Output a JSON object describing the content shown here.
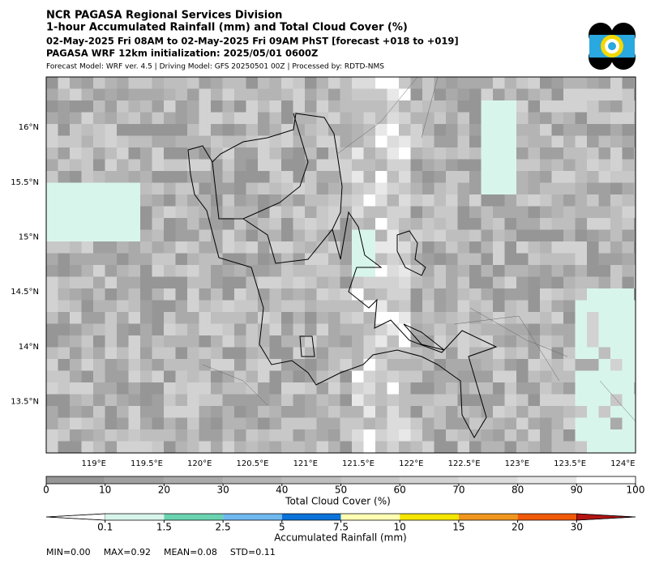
{
  "header": {
    "title": "NCR PAGASA Regional Services Division",
    "subtitle": "1-hour Accumulated Rainfall (mm) and Total Cloud Cover (%)",
    "period": "02-May-2025 Fri 08AM to 02-May-2025 Fri 09AM PhST [forecast +018 to +019]",
    "init": "PAGASA WRF 12km initialization: 2025/05/01 0600Z",
    "model": "Forecast Model: WRF ver. 4.5 | Driving Model: GFS 20250501 00Z | Processed by: RDTD-NMS"
  },
  "map": {
    "lon_range": [
      118.55,
      124.12
    ],
    "lat_range": [
      13.03,
      16.46
    ],
    "lon_ticks": [
      {
        "value": 119,
        "label": "119°E"
      },
      {
        "value": 119.5,
        "label": "119.5°E"
      },
      {
        "value": 120,
        "label": "120°E"
      },
      {
        "value": 120.5,
        "label": "120.5°E"
      },
      {
        "value": 121,
        "label": "121°E"
      },
      {
        "value": 121.5,
        "label": "121.5°E"
      },
      {
        "value": 122,
        "label": "122°E"
      },
      {
        "value": 122.5,
        "label": "122.5°E"
      },
      {
        "value": 123,
        "label": "123°E"
      },
      {
        "value": 123.5,
        "label": "123.5°E"
      },
      {
        "value": 124,
        "label": "124°E"
      }
    ],
    "lat_ticks": [
      {
        "value": 16,
        "label": "16°N"
      },
      {
        "value": 15.5,
        "label": "15.5°N"
      },
      {
        "value": 15,
        "label": "15°N"
      },
      {
        "value": 14.5,
        "label": "14.5°N"
      },
      {
        "value": 14,
        "label": "14°N"
      },
      {
        "value": 13.5,
        "label": "13.5°N"
      }
    ]
  },
  "cloud_colorbar": {
    "label": "Total Cloud Cover (%)",
    "range": [
      0,
      100
    ],
    "ticks": [
      0,
      10,
      20,
      30,
      40,
      50,
      60,
      70,
      80,
      90,
      100
    ],
    "colors": [
      "#969696",
      "#a0a0a0",
      "#aaaaaa",
      "#b4b4b4",
      "#bebebe",
      "#c8c8c8",
      "#d2d2d2",
      "#dcdcdc",
      "#e8e8e8",
      "#ffffff"
    ]
  },
  "rain_colorbar": {
    "label": "Accumulated Rainfall (mm)",
    "bounds": [
      0.1,
      1.5,
      2.5,
      5,
      7.5,
      10,
      15,
      20,
      30
    ],
    "colors": [
      "#d8f5ec",
      "#6ad4b0",
      "#70b8f0",
      "#0a72d8",
      "#ffffb4",
      "#f5e600",
      "#f0961e",
      "#f05a0a"
    ],
    "under": "#ffffff",
    "over": "#b41414"
  },
  "stats": [
    "MIN=0.00",
    "MAX=0.92",
    "MEAN=0.08",
    "STD=0.11"
  ]
}
